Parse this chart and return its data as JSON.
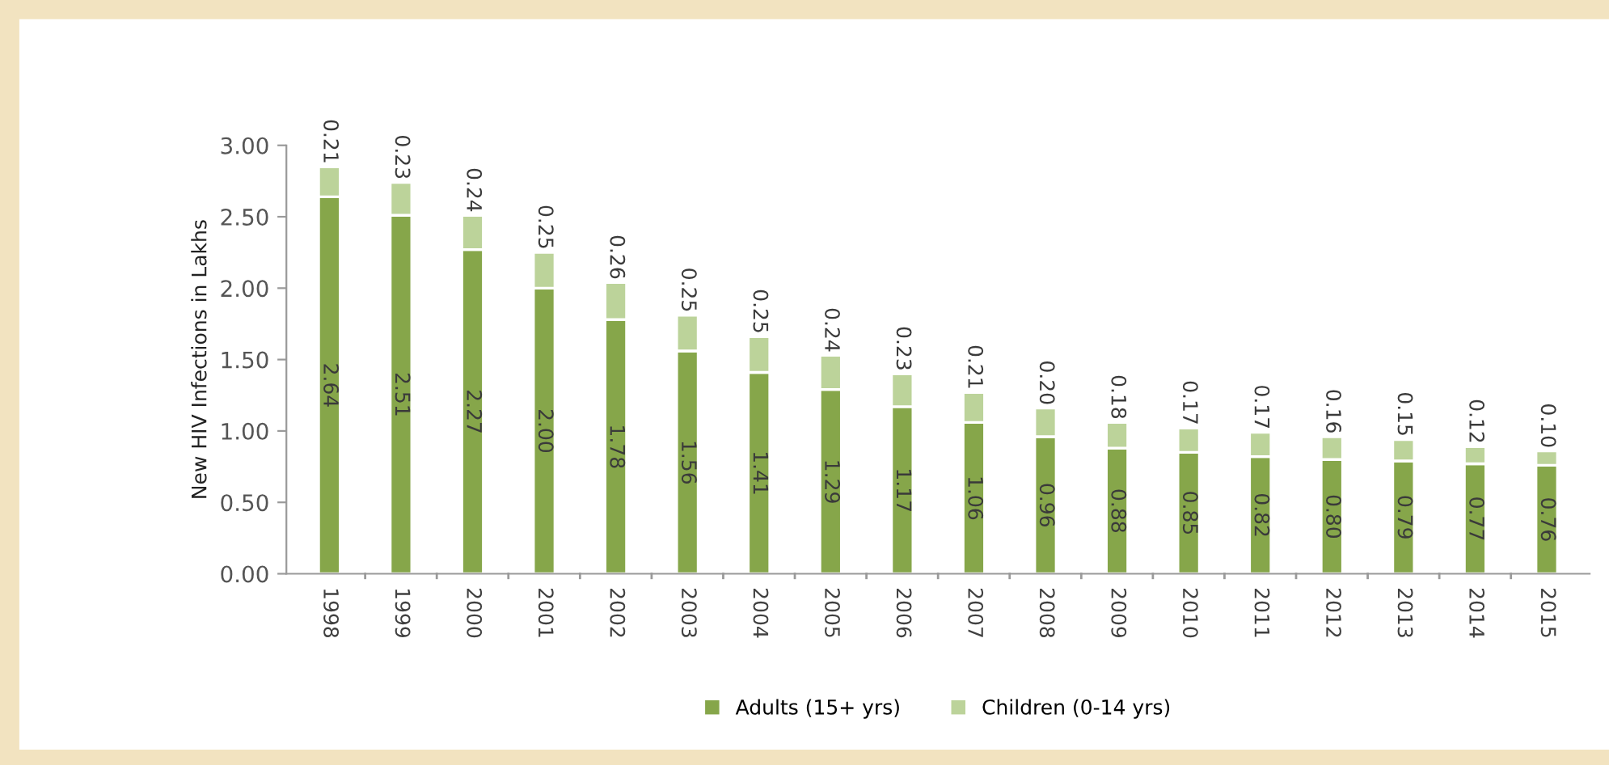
{
  "chart_data": {
    "type": "bar",
    "stacked": true,
    "ylabel": "New HIV Infections in Lakhs",
    "categories": [
      "1998",
      "1999",
      "2000",
      "2001",
      "2002",
      "2003",
      "2004",
      "2005",
      "2006",
      "2007",
      "2008",
      "2009",
      "2010",
      "2011",
      "2012",
      "2013",
      "2014",
      "2015"
    ],
    "series": [
      {
        "name": "Adults (15+ yrs)",
        "color": "#86a64a",
        "values": [
          2.64,
          2.51,
          2.27,
          2.0,
          1.78,
          1.56,
          1.41,
          1.29,
          1.17,
          1.06,
          0.96,
          0.88,
          0.85,
          0.82,
          0.8,
          0.79,
          0.77,
          0.76
        ],
        "value_labels": [
          "2.64",
          "2.51",
          "2.27",
          "2.00",
          "1.78",
          "1.56",
          "1.41",
          "1.29",
          "1.17",
          "1.06",
          "0.96",
          "0.88",
          "0.85",
          "0.82",
          "0.80",
          "0.79",
          "0.77",
          "0.76"
        ]
      },
      {
        "name": "Children (0-14 yrs)",
        "color": "#bcd39a",
        "values": [
          0.21,
          0.23,
          0.24,
          0.25,
          0.26,
          0.25,
          0.25,
          0.24,
          0.23,
          0.21,
          0.2,
          0.18,
          0.17,
          0.17,
          0.16,
          0.15,
          0.12,
          0.1
        ],
        "value_labels": [
          "0.21",
          "0.23",
          "0.24",
          "0.25",
          "0.26",
          "0.25",
          "0.25",
          "0.24",
          "0.23",
          "0.21",
          "0.20",
          "0.18",
          "0.17",
          "0.17",
          "0.16",
          "0.15",
          "0.12",
          "0.10"
        ]
      }
    ],
    "ylim": [
      0,
      3
    ],
    "yticks": [
      {
        "value": 0,
        "label": "0.00"
      },
      {
        "value": 0.5,
        "label": "0.50"
      },
      {
        "value": 1,
        "label": "1.00"
      },
      {
        "value": 1.5,
        "label": "1.50"
      },
      {
        "value": 2,
        "label": "2.00"
      },
      {
        "value": 2.5,
        "label": "2.50"
      },
      {
        "value": 3,
        "label": "3.00"
      }
    ],
    "grid": false,
    "legend": "bottom"
  }
}
